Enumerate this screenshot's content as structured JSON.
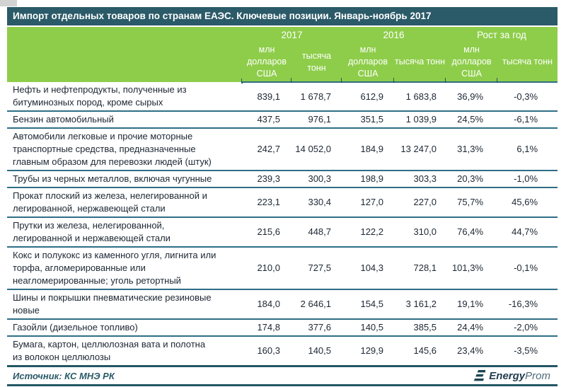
{
  "title": "Импорт отдельных товаров по странам ЕАЭС. Ключевые позиции. Январь-ноябрь 2017",
  "chart_data": {
    "type": "table",
    "title": "Импорт отдельных товаров по странам ЕАЭС. Ключевые позиции. Январь-ноябрь 2017",
    "column_groups": [
      "2017",
      "2016",
      "Рост за год"
    ],
    "columns": [
      "млн долларов США",
      "тысяча тонн",
      "млн долларов США",
      "тысяча тонн",
      "млн долларов США",
      "тысяча тонн"
    ],
    "rows": [
      {
        "name": "Нефть и нефтепродукты, полученные из\nбитуминозных пород, кроме сырых",
        "values": [
          "839,1",
          "1 678,7",
          "612,9",
          "1 683,8",
          "36,9%",
          "-0,3%"
        ]
      },
      {
        "name": "Бензин автомобильный",
        "values": [
          "437,5",
          "976,1",
          "351,5",
          "1 039,9",
          "24,5%",
          "-6,1%"
        ]
      },
      {
        "name": "Автомобили легковые и прочие моторные\nтранспортные средства, предназначенные\nглавным образом для перевозки людей (штук)",
        "values": [
          "242,7",
          "14 052,0",
          "184,9",
          "13 247,0",
          "31,3%",
          "6,1%"
        ]
      },
      {
        "name": "Трубы из черных металлов, включая чугунные",
        "values": [
          "239,3",
          "300,3",
          "198,9",
          "303,3",
          "20,3%",
          "-1,0%"
        ]
      },
      {
        "name": "Прокат плоский из железа, нелегированной  и\nлегированной,  нержавеющей стали",
        "values": [
          "223,1",
          "330,4",
          "127,0",
          "227,0",
          "75,7%",
          "45,6%"
        ]
      },
      {
        "name": "Прутки из железа, нелегированной,\nлегированной  и  нержавеющей стали",
        "values": [
          "215,6",
          "448,7",
          "122,2",
          "310,0",
          "76,4%",
          "44,7%"
        ]
      },
      {
        "name": "Кокс и полукокс из каменного угля, лигнита или\nторфа, агломерированные или\nнеагломерированные; уголь ретортный",
        "values": [
          "210,0",
          "727,5",
          "104,3",
          "728,1",
          "101,3%",
          "-0,1%"
        ]
      },
      {
        "name": "Шины и покрышки пневматические резиновые\nновые",
        "values": [
          "184,0",
          "2 646,1",
          "154,5",
          "3 161,2",
          "19,1%",
          "-16,3%"
        ]
      },
      {
        "name": "Газойли (дизельное  топливо)",
        "values": [
          "174,8",
          "377,6",
          "140,5",
          "385,5",
          "24,4%",
          "-2,0%"
        ]
      },
      {
        "name": "Бумага,  картон, целлюлозная вата   и полотна\nиз волокон  целлюлозы",
        "values": [
          "160,3",
          "140,5",
          "129,9",
          "145,6",
          "23,4%",
          "-3,5%"
        ]
      }
    ]
  },
  "footer": {
    "source": "Источник: КС МНЭ РК",
    "logo_bold": "Energy",
    "logo_light": "Prom"
  },
  "colors": {
    "title_bar": "#2b5a68",
    "header_green": "#8ecd4a",
    "line_teal": "#2e6e86",
    "line_teal_dark": "#235764",
    "text": "#1c2733"
  }
}
